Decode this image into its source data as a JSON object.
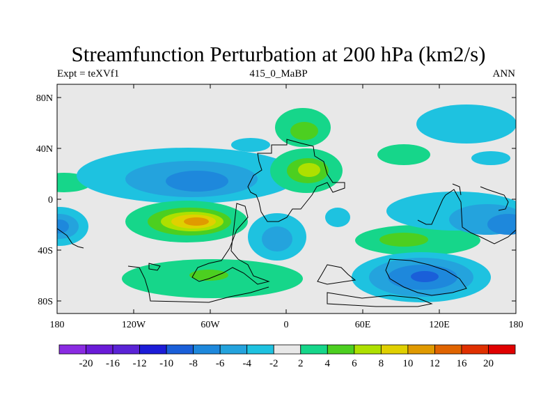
{
  "title": "Streamfunction Perturbation at 200 hPa (km2/s)",
  "subtitle_left": "Expt = teXVf1",
  "subtitle_center": "415_0_MaBP",
  "subtitle_right": "ANN",
  "lat_ticks": [
    "80N",
    "40N",
    "0",
    "40S",
    "80S"
  ],
  "lon_ticks": [
    "180",
    "120W",
    "60W",
    "0",
    "60E",
    "120E",
    "180"
  ],
  "colorbar": {
    "labels": [
      "-20",
      "-16",
      "-12",
      "-10",
      "-8",
      "-6",
      "-4",
      "-2",
      "2",
      "4",
      "6",
      "8",
      "10",
      "12",
      "16",
      "20"
    ],
    "colors": [
      "#8a2be2",
      "#6a1bd8",
      "#5a23d6",
      "#1c1cd8",
      "#1a5fd9",
      "#1e88dc",
      "#24a3dd",
      "#1ec2e0",
      "#e8e8e8",
      "#16d68a",
      "#4ccf20",
      "#aee000",
      "#e0d000",
      "#e09a00",
      "#e06400",
      "#e03000",
      "#e00000"
    ]
  },
  "field_colors": {
    "background": "#e8e8e8",
    "neg_2": "#1ec2e0",
    "neg_4": "#24a3dd",
    "neg_6": "#1e88dc",
    "neg_8": "#1a5fd9",
    "pos_2": "#16d68a",
    "pos_4": "#4ccf20",
    "pos_6": "#aee000",
    "pos_8": "#e0d000",
    "pos_10": "#e09a00"
  }
}
